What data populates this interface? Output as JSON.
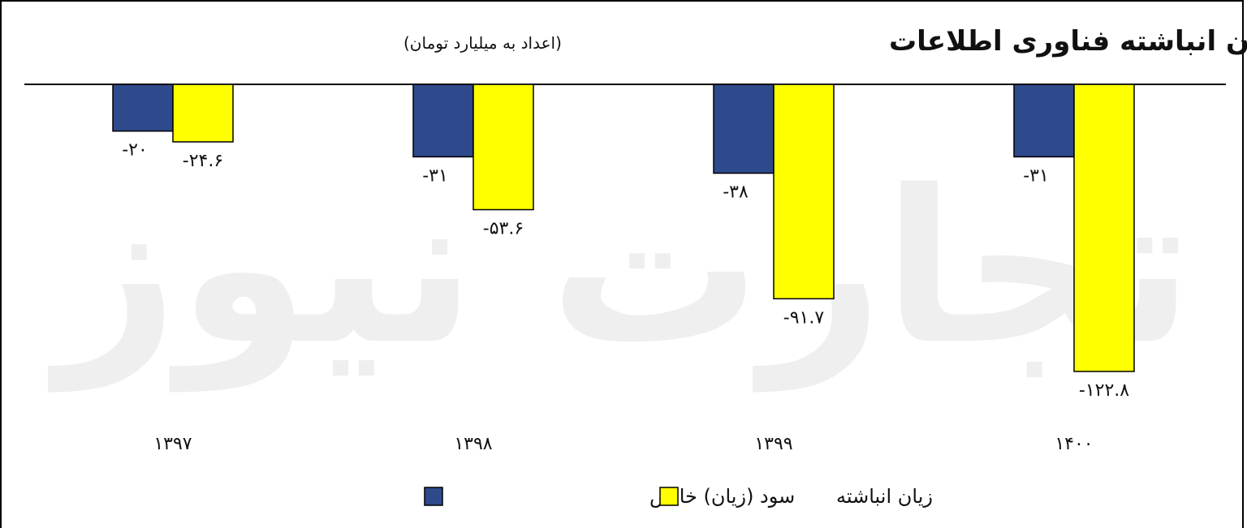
{
  "chart_data": {
    "type": "bar",
    "title": "افزایش زیان انباشته فناوری اطلاعات",
    "subtitle": "(اعداد به میلیارد تومان)",
    "categories": [
      "۱۳۹۷",
      "۱۳۹۸",
      "۱۳۹۹",
      "۱۴۰۰"
    ],
    "series": [
      {
        "name": "سود (زیان) خالص",
        "color": "#2e4a8c",
        "values": [
          -20,
          -31,
          -38,
          -31
        ],
        "labels": [
          "-۲۰",
          "-۳۱",
          "-۳۸",
          "-۳۱"
        ]
      },
      {
        "name": "زیان انباشته",
        "color": "#ffff00",
        "values": [
          -24.6,
          -53.6,
          -91.7,
          -122.8
        ],
        "labels": [
          "-۲۴.۶",
          "-۵۳.۶",
          "-۹۱.۷",
          "-۱۲۲.۸"
        ]
      }
    ],
    "ylim": [
      -122.8,
      0
    ],
    "grid": false,
    "legend": "bottom-center",
    "watermark": "تجارت نیوز"
  }
}
